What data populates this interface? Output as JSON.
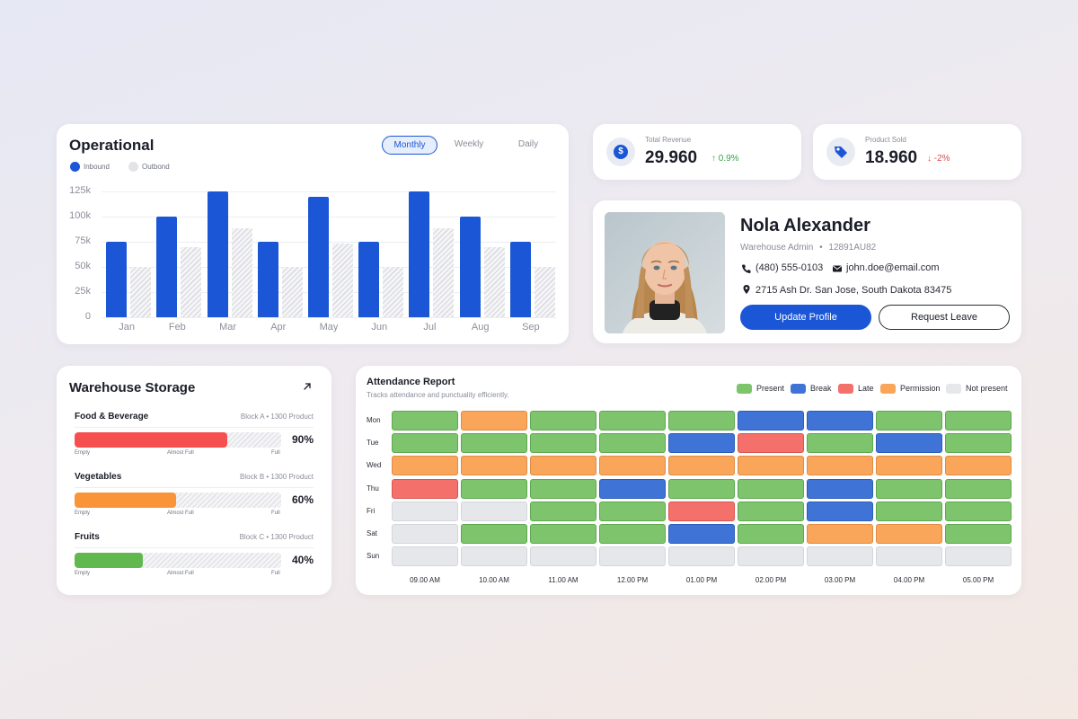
{
  "operational": {
    "title": "Operational",
    "tabs": [
      {
        "label": "Monthly",
        "active": true
      },
      {
        "label": "Weekly",
        "active": false
      },
      {
        "label": "Daily",
        "active": false
      }
    ],
    "legend": [
      {
        "label": "Inbound",
        "color": "#1a56d6"
      },
      {
        "label": "Outbond",
        "color": "#dcdde2"
      }
    ]
  },
  "chart_data": {
    "type": "bar",
    "categories": [
      "Jan",
      "Feb",
      "Mar",
      "Apr",
      "May",
      "Jun",
      "Jul",
      "Aug",
      "Sep"
    ],
    "series": [
      {
        "name": "Inbound",
        "values": [
          75000,
          100000,
          125000,
          75000,
          120000,
          75000,
          125000,
          100000,
          75000
        ]
      },
      {
        "name": "Outbond",
        "values": [
          50000,
          70000,
          88000,
          50000,
          73000,
          50000,
          88000,
          70000,
          50000
        ]
      }
    ],
    "y_ticks": [
      "125k",
      "100k",
      "75k",
      "50k",
      "25k",
      "0"
    ],
    "ylim": [
      0,
      125000
    ],
    "grid": true,
    "legend_position": "top-left"
  },
  "stats": {
    "revenue": {
      "label": "Total Revenue",
      "value": "29.960",
      "delta": "0.9%",
      "direction": "up",
      "icon": "dollar-icon"
    },
    "sold": {
      "label": "Product Sold",
      "value": "18.960",
      "delta": "-2%",
      "direction": "down",
      "icon": "tag-icon"
    }
  },
  "profile": {
    "name": "Nola Alexander",
    "role": "Warehouse Admin",
    "id": "12891AU82",
    "phone": "(480) 555-0103",
    "email": "john.doe@email.com",
    "address": "2715 Ash Dr. San Jose, South Dakota 83475",
    "update_label": "Update Profile",
    "leave_label": "Request Leave"
  },
  "warehouse": {
    "title": "Warehouse Storage",
    "items": [
      {
        "name": "Food & Beverage",
        "block": "Block A • 1300 Product",
        "percent": 90,
        "percent_label": "90%",
        "color": "#f5504f"
      },
      {
        "name": "Vegetables",
        "block": "Block B • 1300 Product",
        "percent": 60,
        "percent_label": "60%",
        "color": "#f99438"
      },
      {
        "name": "Fruits",
        "block": "Block C • 1300 Product",
        "percent": 40,
        "percent_label": "40%",
        "color": "#61b84e"
      }
    ],
    "scale_labels": {
      "empty": "Empty",
      "almost": "Almost Full",
      "full": "Full"
    }
  },
  "attendance": {
    "title": "Attendance Report",
    "subtitle": "Tracks attendance and punctuality efficiently.",
    "legend": [
      {
        "key": "P",
        "label": "Present",
        "color": "#7dc46d"
      },
      {
        "key": "B",
        "label": "Break",
        "color": "#3f74d6"
      },
      {
        "key": "L",
        "label": "Late",
        "color": "#f4706b"
      },
      {
        "key": "M",
        "label": "Permission",
        "color": "#f9a55a"
      },
      {
        "key": "N",
        "label": "Not present",
        "color": "#e6e7eb"
      }
    ],
    "days": [
      "Mon",
      "Tue",
      "Wed",
      "Thu",
      "Fri",
      "Sat",
      "Sun"
    ],
    "times": [
      "09.00 AM",
      "10.00 AM",
      "11.00 AM",
      "12.00 PM",
      "01.00 PM",
      "02.00 PM",
      "03.00 PM",
      "04.00 PM",
      "05.00 PM"
    ],
    "grid": [
      [
        "P",
        "M",
        "P",
        "P",
        "P",
        "B",
        "B",
        "P",
        "P"
      ],
      [
        "P",
        "P",
        "P",
        "P",
        "B",
        "L",
        "P",
        "B",
        "P"
      ],
      [
        "M",
        "M",
        "M",
        "M",
        "M",
        "M",
        "M",
        "M",
        "M"
      ],
      [
        "L",
        "P",
        "P",
        "B",
        "P",
        "P",
        "B",
        "P",
        "P"
      ],
      [
        "N",
        "N",
        "P",
        "P",
        "L",
        "P",
        "B",
        "P",
        "P"
      ],
      [
        "N",
        "P",
        "P",
        "P",
        "B",
        "P",
        "M",
        "M",
        "P"
      ],
      [
        "N",
        "N",
        "N",
        "N",
        "N",
        "N",
        "N",
        "N",
        "N"
      ]
    ]
  }
}
